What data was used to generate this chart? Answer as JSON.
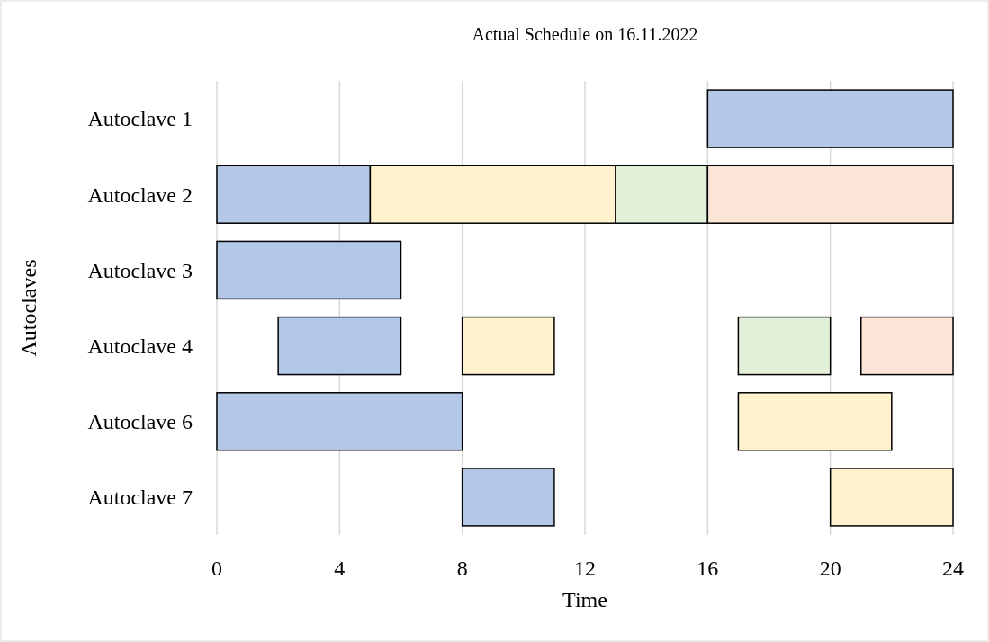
{
  "chart_data": {
    "type": "bar",
    "orientation": "horizontal",
    "title": "Actual Schedule on 16.11.2022",
    "xlabel": "Time",
    "ylabel": "Autoclaves",
    "categories": [
      "Autoclave 1",
      "Autoclave 2",
      "Autoclave 3",
      "Autoclave 4",
      "Autoclave 6",
      "Autoclave 7"
    ],
    "series": [
      {
        "color": "#b4c7e7",
        "base": [
          16,
          0,
          0,
          2,
          0,
          8
        ],
        "values": [
          8,
          5,
          6,
          4,
          8,
          3
        ]
      },
      {
        "color": "#fff2cc",
        "base": [
          null,
          5,
          null,
          8,
          17,
          20
        ],
        "values": [
          null,
          8,
          null,
          3,
          5,
          4
        ]
      },
      {
        "color": "#e2f0d9",
        "base": [
          null,
          13,
          null,
          17,
          null,
          null
        ],
        "values": [
          null,
          3,
          null,
          3,
          null,
          null
        ]
      },
      {
        "color": "#fbe5d6",
        "base": [
          null,
          16,
          null,
          21,
          null,
          null
        ],
        "values": [
          null,
          8,
          null,
          3,
          null,
          null
        ]
      }
    ],
    "xlim": [
      0,
      24
    ],
    "xticks": [
      0,
      4,
      8,
      12,
      16,
      20,
      24
    ],
    "grid": "x"
  }
}
